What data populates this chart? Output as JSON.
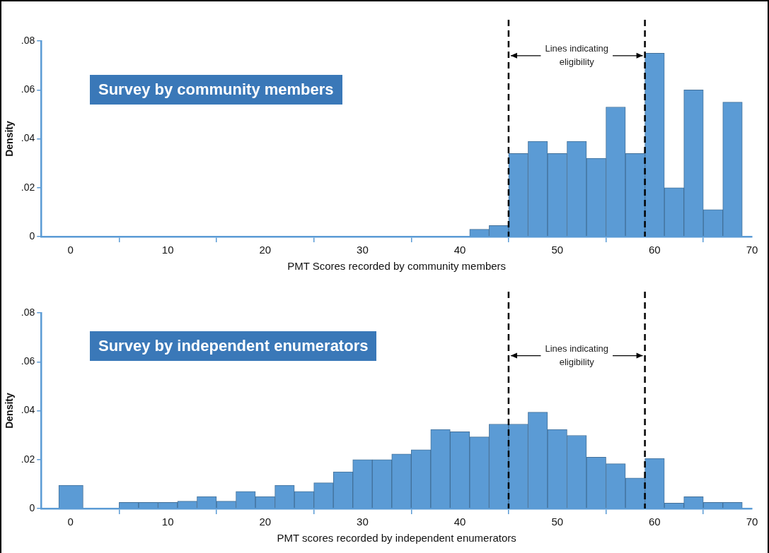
{
  "chart_data": [
    {
      "type": "histogram",
      "title": "Survey by community members",
      "xlabel": "PMT Scores recorded by community members",
      "ylabel": "Density",
      "bins": [
        41,
        43,
        45,
        47,
        49,
        51,
        53,
        55,
        57,
        59,
        61,
        63,
        65,
        67,
        69
      ],
      "values": [
        0.003,
        0.0045,
        0.034,
        0.039,
        0.034,
        0.039,
        0.032,
        0.053,
        0.034,
        0.075,
        0.02,
        0.06,
        0.011,
        0.055
      ],
      "color": "#5b9bd5",
      "xlim": [
        -3,
        70
      ],
      "xticks": [
        0,
        10,
        20,
        30,
        40,
        50,
        60,
        70
      ],
      "ylim": [
        0,
        0.08
      ],
      "yticks": [
        {
          "value": 0,
          "label": "0"
        },
        {
          "value": 0.02,
          "label": ".02"
        },
        {
          "value": 0.04,
          "label": ".04"
        },
        {
          "value": 0.06,
          "label": ".06"
        },
        {
          "value": 0.08,
          "label": ".08"
        }
      ],
      "ref_lines": [
        {
          "axis": "x",
          "value": 45,
          "color": "#000000",
          "line_style": "dashed"
        },
        {
          "axis": "x",
          "value": 59,
          "color": "#000000",
          "line_style": "dashed"
        }
      ],
      "annotations": [
        {
          "text": "Lines indicating eligibility",
          "x": 45,
          "y": 0.074
        }
      ],
      "grid": false,
      "legend": false
    },
    {
      "type": "histogram",
      "title": "Survey by independent enumerators",
      "xlabel": "PMT scores recorded by independent enumerators",
      "ylabel": "Density",
      "bins": [
        -1.2,
        1.3,
        5,
        7,
        9,
        11,
        13,
        15,
        17,
        19,
        21,
        23,
        25,
        27,
        29,
        31,
        33,
        35,
        37,
        39,
        41,
        43,
        45,
        47,
        49,
        51,
        53,
        55,
        57,
        59,
        61,
        63,
        65,
        67,
        69
      ],
      "values": [
        0.0095,
        0,
        0.0025,
        0.0025,
        0.0025,
        0.003,
        0.0049,
        0.003,
        0.007,
        0.0049,
        0.0095,
        0.007,
        0.0105,
        0.015,
        0.02,
        0.02,
        0.0223,
        0.024,
        0.0323,
        0.0314,
        0.0293,
        0.0345,
        0.0345,
        0.0394,
        0.0323,
        0.0299,
        0.021,
        0.0183,
        0.0125,
        0.0205,
        0.0022,
        0.0048,
        0.0025,
        0.0025
      ],
      "color": "#5b9bd5",
      "xlim": [
        -3,
        70
      ],
      "xticks": [
        0,
        10,
        20,
        30,
        40,
        50,
        60,
        70
      ],
      "ylim": [
        0,
        0.08
      ],
      "yticks": [
        {
          "value": 0,
          "label": "0"
        },
        {
          "value": 0.02,
          "label": ".02"
        },
        {
          "value": 0.04,
          "label": ".04"
        },
        {
          "value": 0.06,
          "label": ".06"
        },
        {
          "value": 0.08,
          "label": ".08"
        }
      ],
      "ref_lines": [
        {
          "axis": "x",
          "value": 45,
          "color": "#000000",
          "line_style": "dashed"
        },
        {
          "axis": "x",
          "value": 59,
          "color": "#000000",
          "line_style": "dashed"
        }
      ],
      "annotations": [
        {
          "text": "Lines indicating eligibility",
          "x": 45,
          "y": 0.0625
        }
      ],
      "grid": false,
      "legend": false
    }
  ]
}
